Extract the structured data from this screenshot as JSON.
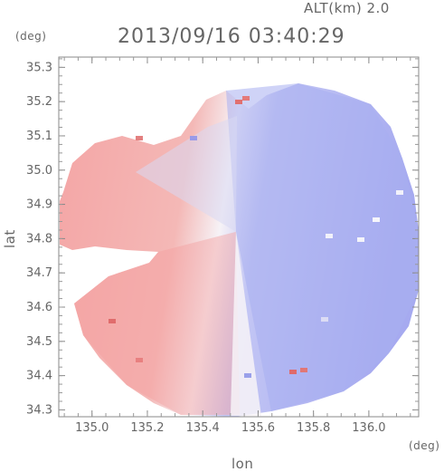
{
  "header": {
    "altitude_label": "ALT(km) 2.0",
    "timestamp": "2013/09/16 03:40:29"
  },
  "chart_data": {
    "type": "heatmap",
    "title": "2013/09/16 03:40:29",
    "subtitle": "ALT(km) 2.0",
    "xlabel": "lon",
    "ylabel": "lat",
    "x_unit": "(deg)",
    "y_unit": "(deg)",
    "xlim": [
      134.88,
      136.18
    ],
    "ylim": [
      34.28,
      35.33
    ],
    "xticks": [
      135.0,
      135.2,
      135.4,
      135.6,
      135.8,
      136.0
    ],
    "xtick_labels": [
      "135.0",
      "135.2",
      "135.4",
      "135.6",
      "135.8",
      "136.0"
    ],
    "yticks": [
      34.3,
      34.4,
      34.5,
      34.6,
      34.7,
      34.8,
      34.9,
      35.0,
      35.1,
      35.2,
      35.3
    ],
    "ytick_labels": [
      "34.3",
      "34.4",
      "34.5",
      "34.6",
      "34.7",
      "34.8",
      "34.9",
      "35.0",
      "35.1",
      "35.2",
      "35.3"
    ],
    "grid": false,
    "center": {
      "lon": 135.52,
      "lat": 34.82
    },
    "colors": {
      "toward": "#f2a3a3",
      "away": "#a3a8f2",
      "zero": "#f8f6f8"
    }
  }
}
